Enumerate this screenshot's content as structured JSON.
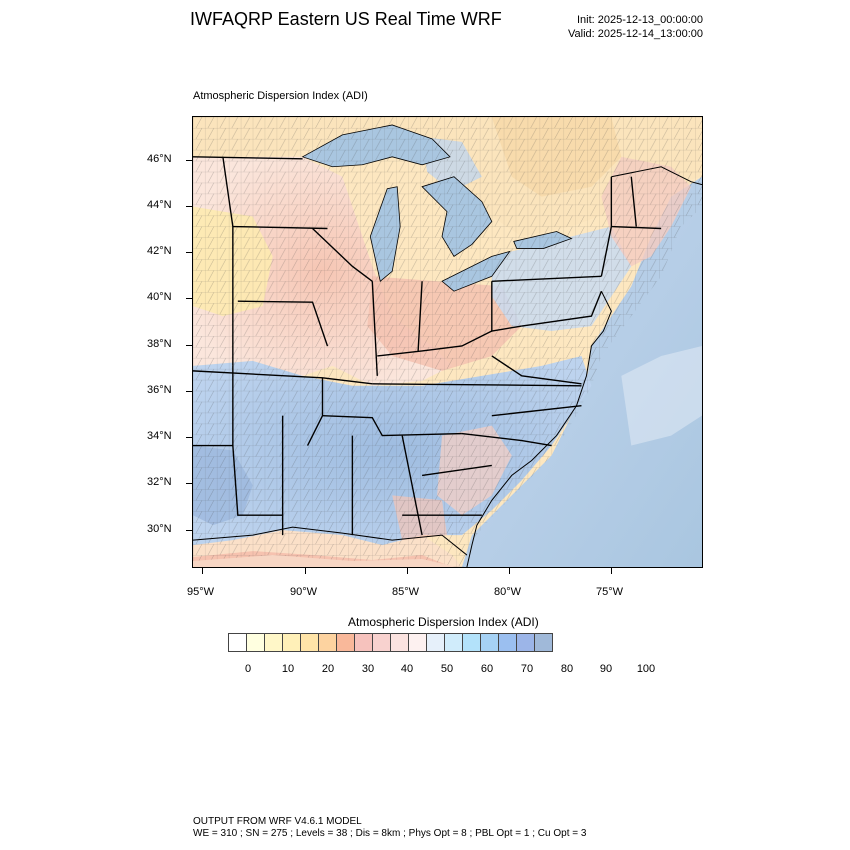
{
  "header": {
    "title": "IWFAQRP Eastern US Real Time WRF",
    "init": "Init: 2025-12-13_00:00:00",
    "valid": "Valid: 2025-12-14_13:00:00"
  },
  "map": {
    "subtitle": "Atmospheric Dispersion Index   (ADI)",
    "lat_labels": [
      "46°N",
      "44°N",
      "42°N",
      "40°N",
      "38°N",
      "36°N",
      "34°N",
      "32°N",
      "30°N"
    ],
    "lon_labels": [
      "95°W",
      "90°W",
      "85°W",
      "80°W",
      "75°W"
    ],
    "colors": {
      "ocean": "#a9c6e0",
      "lakes": "#a9c6e0",
      "state_lines": "#000000",
      "county_lines": "#333333"
    }
  },
  "colorbar": {
    "title": "Atmospheric Dispersion Index  (ADI)",
    "colors": [
      "#ffffff",
      "#ffffe0",
      "#fff7c8",
      "#fff0b8",
      "#ffe4a8",
      "#fdd3a0",
      "#f9b89a",
      "#f6c2bd",
      "#f8d2cf",
      "#fbe3e0",
      "#fdf1f0",
      "#e6f0fa",
      "#d0ecfb",
      "#b3e2fa",
      "#a6d2f5",
      "#9bbff0",
      "#9cb5e8",
      "#a0b9d9"
    ],
    "labels": [
      "0",
      "10",
      "20",
      "30",
      "40",
      "50",
      "60",
      "70",
      "80",
      "90",
      "100"
    ]
  },
  "footer": {
    "line1": "OUTPUT FROM WRF V4.6.1 MODEL",
    "line2": "WE = 310 ; SN = 275 ; Levels = 38 ; Dis = 8km ; Phys Opt = 8 ; PBL Opt = 1 ; Cu Opt = 3"
  }
}
